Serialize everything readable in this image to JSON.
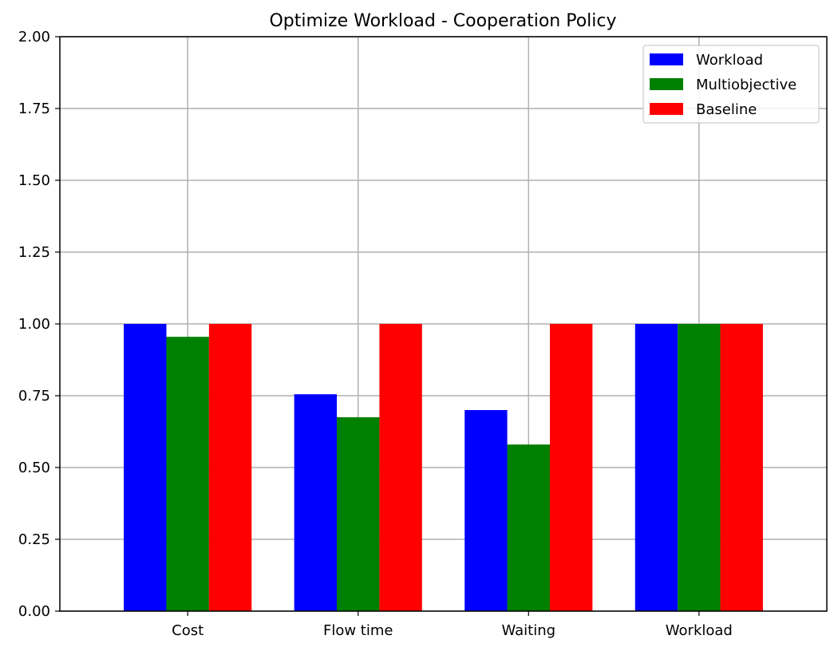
{
  "chart_data": {
    "type": "bar",
    "title": "Optimize Workload - Cooperation Policy",
    "xlabel": "",
    "ylabel": "",
    "categories": [
      "Cost",
      "Flow time",
      "Waiting",
      "Workload"
    ],
    "series": [
      {
        "name": "Workload",
        "color": "#0000ff",
        "values": [
          1.0,
          0.755,
          0.7,
          1.0
        ]
      },
      {
        "name": "Multiobjective",
        "color": "#008000",
        "values": [
          0.955,
          0.675,
          0.58,
          1.0
        ]
      },
      {
        "name": "Baseline",
        "color": "#ff0000",
        "values": [
          1.0,
          1.0,
          1.0,
          1.0
        ]
      }
    ],
    "ylim": [
      0,
      2.0
    ],
    "yticks": [
      "0.00",
      "0.25",
      "0.50",
      "0.75",
      "1.00",
      "1.25",
      "1.50",
      "1.75",
      "2.00"
    ],
    "grid": true,
    "legend_position": "top-right"
  }
}
